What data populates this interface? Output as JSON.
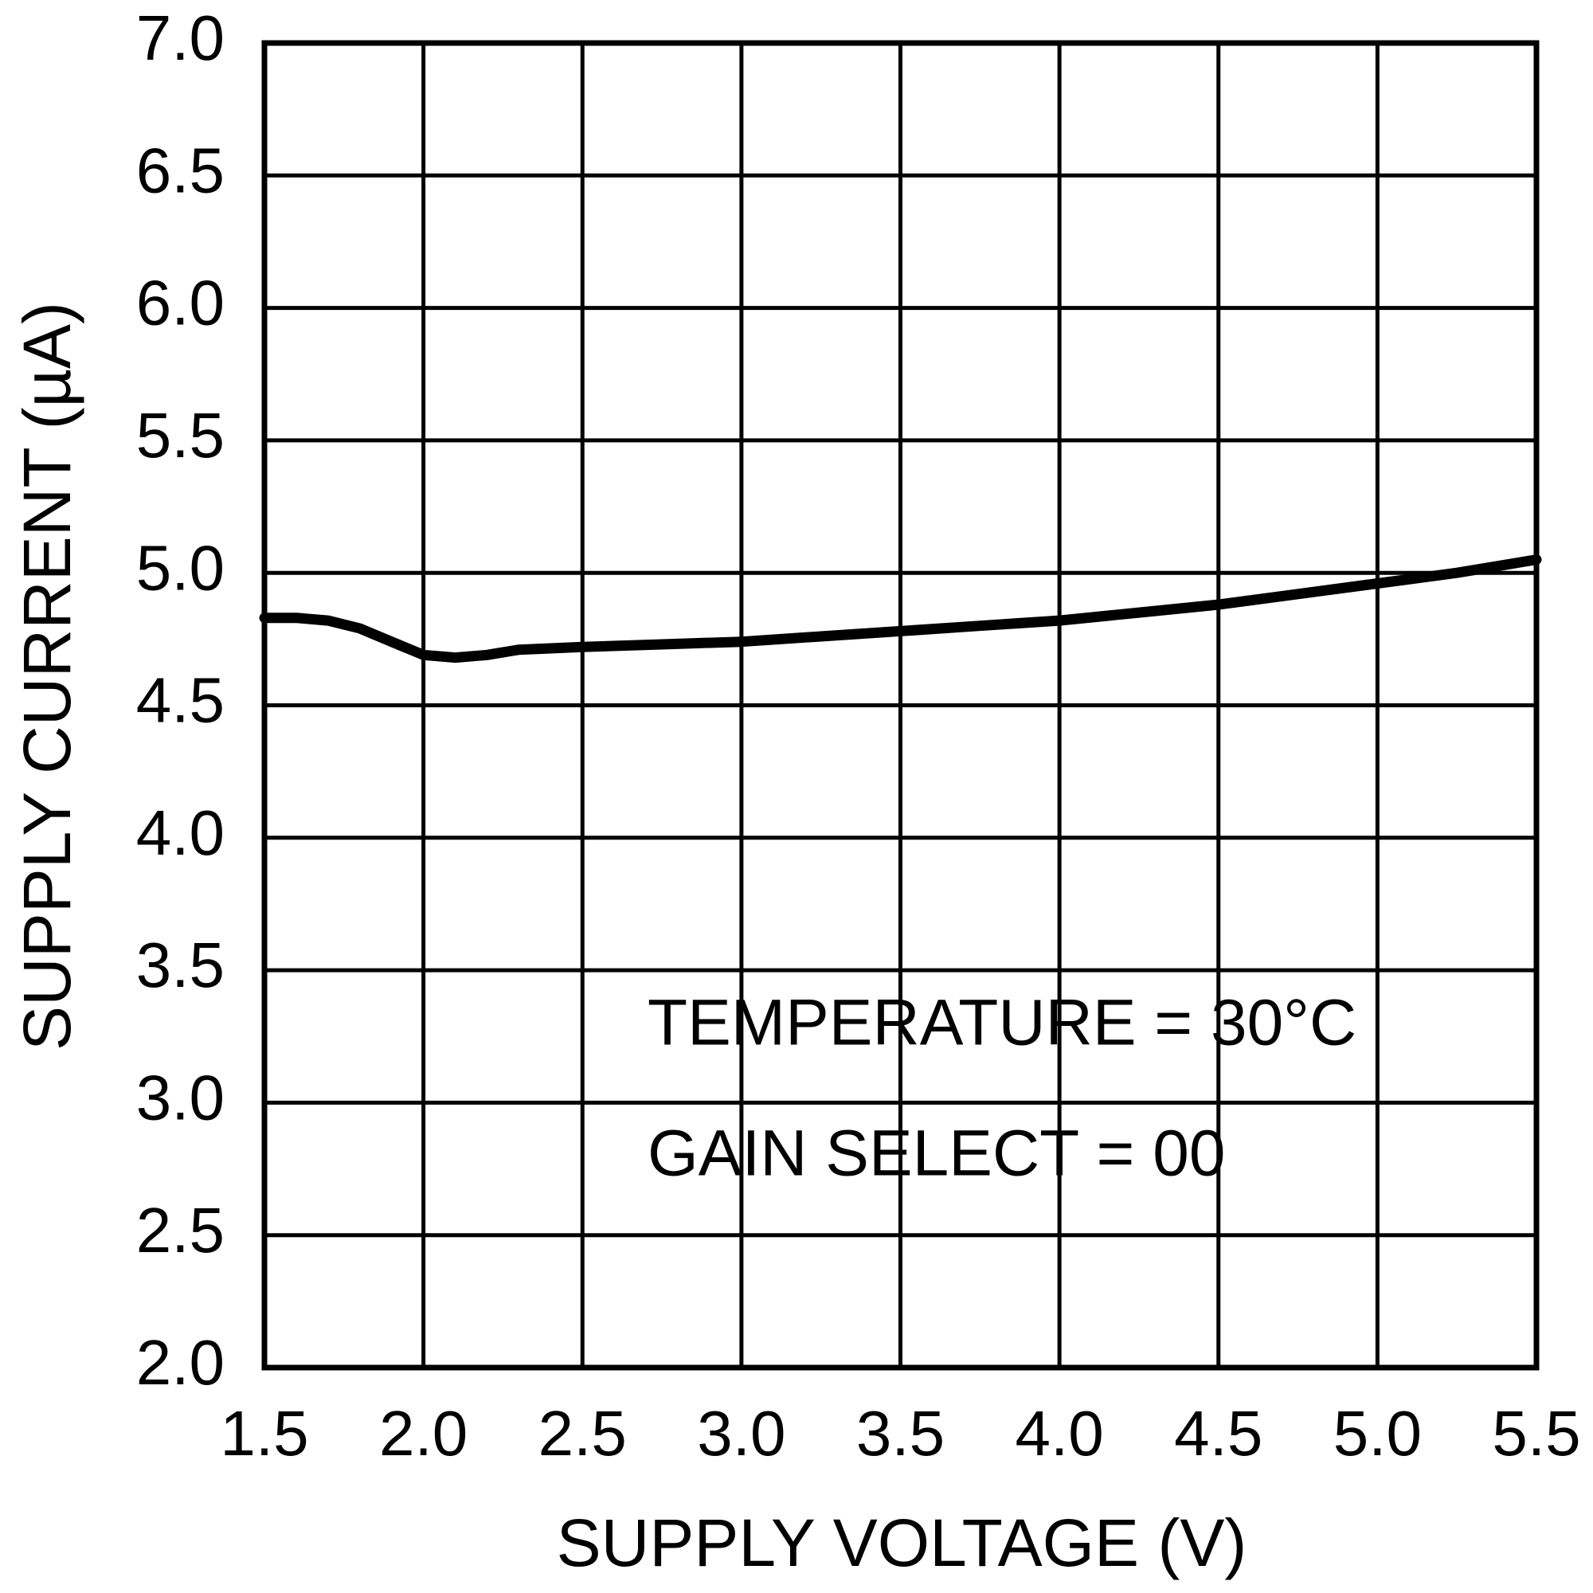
{
  "chart_data": {
    "type": "line",
    "x_label": "SUPPLY VOLTAGE (V)",
    "y_label": "SUPPLY CURRENT (µA)",
    "annotations": [
      "TEMPERATURE = 30°C",
      "GAIN SELECT = 00"
    ],
    "x": [
      1.5,
      1.6,
      1.7,
      1.8,
      1.9,
      2.0,
      2.1,
      2.2,
      2.3,
      2.5,
      2.75,
      3.0,
      3.25,
      3.5,
      3.75,
      4.0,
      4.25,
      4.5,
      4.75,
      5.0,
      5.25,
      5.5
    ],
    "values": [
      4.83,
      4.83,
      4.82,
      4.79,
      4.74,
      4.69,
      4.68,
      4.69,
      4.71,
      4.72,
      4.73,
      4.74,
      4.76,
      4.78,
      4.8,
      4.82,
      4.85,
      4.88,
      4.92,
      4.96,
      5.0,
      5.05
    ],
    "color": "#000000",
    "xlim": [
      1.5,
      5.5
    ],
    "ylim": [
      2,
      7
    ],
    "xticks": [
      1.5,
      {
        "value": 2,
        "label": "2.0"
      },
      2.5,
      {
        "value": 3,
        "label": "3.0"
      },
      3.5,
      {
        "value": 4,
        "label": "4.0"
      },
      4.5,
      {
        "value": 5,
        "label": "5.0"
      },
      5.5
    ],
    "yticks": [
      {
        "value": 2,
        "label": "2.0"
      },
      2.5,
      {
        "value": 3,
        "label": "3.0"
      },
      3.5,
      {
        "value": 4,
        "label": "4.0"
      },
      4.5,
      {
        "value": 5,
        "label": "5.0"
      },
      5.5,
      {
        "value": 6,
        "label": "6.0"
      },
      6.5,
      {
        "value": 7,
        "label": "7.0"
      }
    ],
    "grid": true
  }
}
